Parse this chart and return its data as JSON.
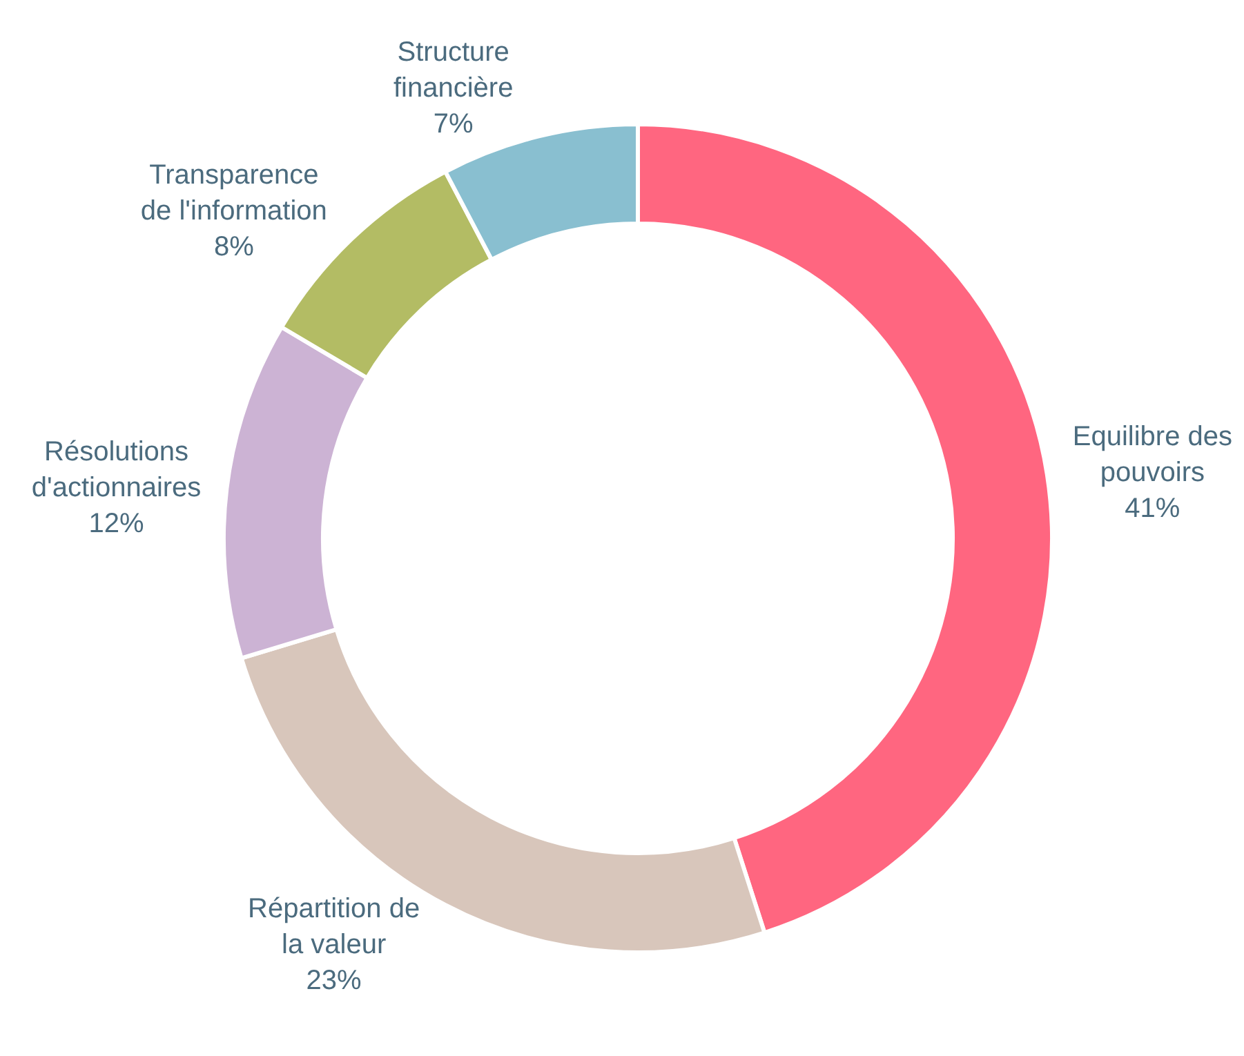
{
  "chart_data": {
    "type": "donut",
    "categories": [
      "Equilibre des\npouvoirs",
      "Répartition de\nla valeur",
      "Résolutions\nd'actionnaires",
      "Transparence\nde l'information",
      "Structure\nfinancière"
    ],
    "values": [
      41,
      23,
      12,
      8,
      7
    ],
    "value_labels": [
      "41%",
      "23%",
      "12%",
      "8%",
      "7%"
    ],
    "colors": [
      "#ff6680",
      "#d8c6bb",
      "#ccb3d4",
      "#b3bc64",
      "#89bfd0"
    ],
    "legend": false
  }
}
